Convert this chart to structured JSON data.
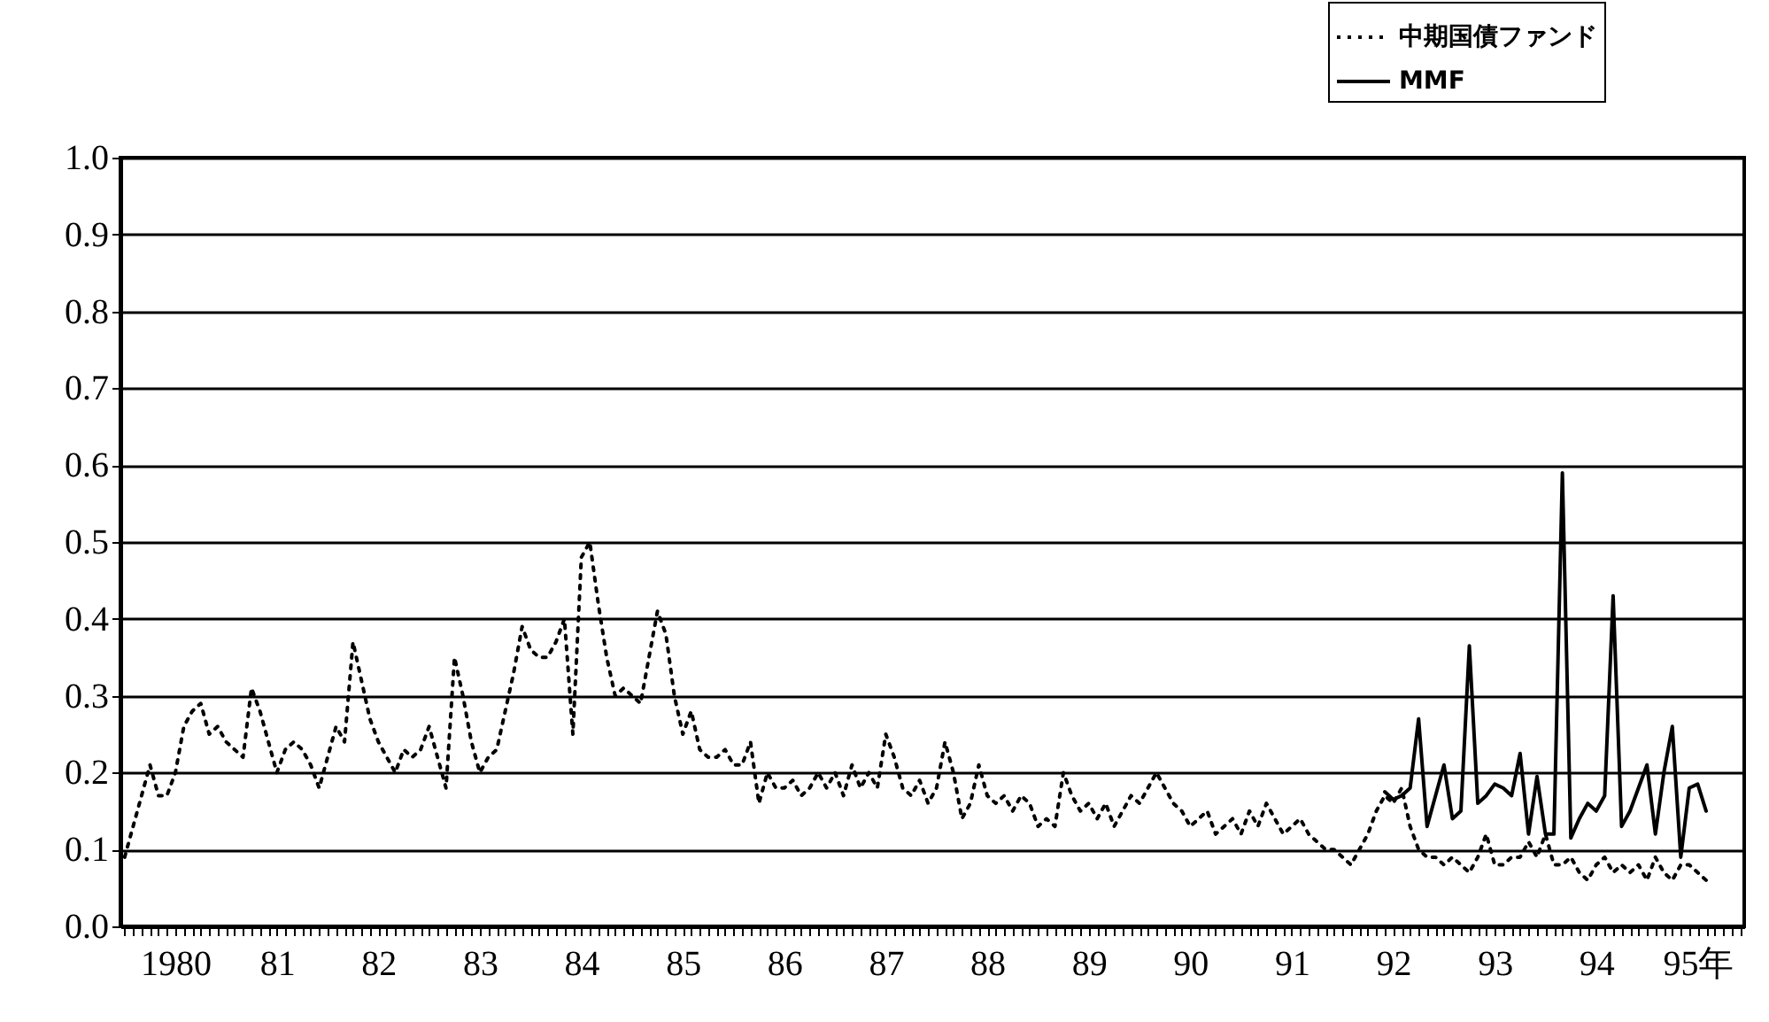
{
  "chart_data": {
    "type": "line",
    "categories": [
      null,
      null,
      null,
      null,
      null,
      null,
      "1980",
      null,
      null,
      null,
      null,
      null,
      null,
      null,
      null,
      null,
      null,
      null,
      "81",
      null,
      null,
      null,
      null,
      null,
      null,
      null,
      null,
      null,
      null,
      null,
      "82",
      null,
      null,
      null,
      null,
      null,
      null,
      null,
      null,
      null,
      null,
      null,
      "83",
      null,
      null,
      null,
      null,
      null,
      null,
      null,
      null,
      null,
      null,
      null,
      "84",
      null,
      null,
      null,
      null,
      null,
      null,
      null,
      null,
      null,
      null,
      null,
      "85",
      null,
      null,
      null,
      null,
      null,
      null,
      null,
      null,
      null,
      null,
      null,
      "86",
      null,
      null,
      null,
      null,
      null,
      null,
      null,
      null,
      null,
      null,
      null,
      "87",
      null,
      null,
      null,
      null,
      null,
      null,
      null,
      null,
      null,
      null,
      null,
      "88",
      null,
      null,
      null,
      null,
      null,
      null,
      null,
      null,
      null,
      null,
      null,
      "89",
      null,
      null,
      null,
      null,
      null,
      null,
      null,
      null,
      null,
      null,
      null,
      "90",
      null,
      null,
      null,
      null,
      null,
      null,
      null,
      null,
      null,
      null,
      null,
      "91",
      null,
      null,
      null,
      null,
      null,
      null,
      null,
      null,
      null,
      null,
      null,
      "92",
      null,
      null,
      null,
      null,
      null,
      null,
      null,
      null,
      null,
      null,
      null,
      "93",
      null,
      null,
      null,
      null,
      null,
      null,
      null,
      null,
      null,
      null,
      null,
      "94",
      null,
      null,
      null,
      null,
      null,
      null,
      null,
      null,
      null,
      null,
      null,
      "95年",
      null,
      null,
      null,
      null,
      null
    ],
    "ylim": [
      0,
      1
    ],
    "yticks": [
      {
        "value": 0,
        "label": "0.0"
      },
      0.1,
      0.2,
      0.3,
      0.4,
      0.5,
      0.6,
      0.7,
      0.8,
      0.9,
      {
        "value": 1,
        "label": "1.0"
      }
    ],
    "grid": "y",
    "legend": "top right",
    "series": [
      {
        "name": "中期国債ファンド",
        "color": "#000000",
        "line_style": "dotted",
        "values": [
          0.09,
          0.13,
          0.17,
          0.21,
          0.17,
          0.17,
          0.2,
          0.26,
          0.28,
          0.29,
          0.25,
          0.26,
          0.24,
          0.23,
          0.22,
          0.31,
          0.28,
          0.24,
          0.2,
          0.23,
          0.24,
          0.23,
          0.21,
          0.18,
          0.22,
          0.26,
          0.24,
          0.37,
          0.32,
          0.27,
          0.24,
          0.22,
          0.2,
          0.23,
          0.22,
          0.23,
          0.26,
          0.22,
          0.18,
          0.35,
          0.3,
          0.24,
          0.2,
          0.22,
          0.23,
          0.28,
          0.33,
          0.39,
          0.36,
          0.35,
          0.35,
          0.37,
          0.4,
          0.25,
          0.48,
          0.5,
          0.42,
          0.35,
          0.3,
          0.31,
          0.3,
          0.29,
          0.35,
          0.41,
          0.38,
          0.3,
          0.25,
          0.28,
          0.23,
          0.22,
          0.22,
          0.23,
          0.21,
          0.21,
          0.24,
          0.16,
          0.2,
          0.18,
          0.18,
          0.19,
          0.17,
          0.18,
          0.2,
          0.18,
          0.2,
          0.17,
          0.21,
          0.18,
          0.2,
          0.18,
          0.25,
          0.22,
          0.18,
          0.17,
          0.19,
          0.16,
          0.18,
          0.24,
          0.2,
          0.14,
          0.16,
          0.21,
          0.17,
          0.16,
          0.17,
          0.15,
          0.17,
          0.16,
          0.13,
          0.14,
          0.13,
          0.2,
          0.17,
          0.15,
          0.16,
          0.14,
          0.16,
          0.13,
          0.15,
          0.17,
          0.16,
          0.18,
          0.2,
          0.18,
          0.16,
          0.15,
          0.13,
          0.14,
          0.15,
          0.12,
          0.13,
          0.14,
          0.12,
          0.15,
          0.13,
          0.16,
          0.14,
          0.12,
          0.13,
          0.14,
          0.12,
          0.11,
          0.1,
          0.1,
          0.09,
          0.08,
          0.1,
          0.12,
          0.15,
          0.17,
          0.16,
          0.18,
          0.13,
          0.1,
          0.09,
          0.09,
          0.08,
          0.09,
          0.08,
          0.07,
          0.09,
          0.12,
          0.08,
          0.08,
          0.09,
          0.09,
          0.11,
          0.09,
          0.12,
          0.08,
          0.08,
          0.09,
          0.07,
          0.06,
          0.08,
          0.09,
          0.07,
          0.08,
          0.07,
          0.08,
          0.06,
          0.09,
          0.07,
          0.06,
          0.08,
          0.08,
          0.07,
          0.06,
          null,
          null,
          null,
          null
        ]
      },
      {
        "name": "MMF",
        "color": "#000000",
        "line_style": "solid",
        "values": [
          null,
          null,
          null,
          null,
          null,
          null,
          null,
          null,
          null,
          null,
          null,
          null,
          null,
          null,
          null,
          null,
          null,
          null,
          null,
          null,
          null,
          null,
          null,
          null,
          null,
          null,
          null,
          null,
          null,
          null,
          null,
          null,
          null,
          null,
          null,
          null,
          null,
          null,
          null,
          null,
          null,
          null,
          null,
          null,
          null,
          null,
          null,
          null,
          null,
          null,
          null,
          null,
          null,
          null,
          null,
          null,
          null,
          null,
          null,
          null,
          null,
          null,
          null,
          null,
          null,
          null,
          null,
          null,
          null,
          null,
          null,
          null,
          null,
          null,
          null,
          null,
          null,
          null,
          null,
          null,
          null,
          null,
          null,
          null,
          null,
          null,
          null,
          null,
          null,
          null,
          null,
          null,
          null,
          null,
          null,
          null,
          null,
          null,
          null,
          null,
          null,
          null,
          null,
          null,
          null,
          null,
          null,
          null,
          null,
          null,
          null,
          null,
          null,
          null,
          null,
          null,
          null,
          null,
          null,
          null,
          null,
          null,
          null,
          null,
          null,
          null,
          null,
          null,
          null,
          null,
          null,
          null,
          null,
          null,
          null,
          null,
          null,
          null,
          null,
          null,
          null,
          null,
          null,
          null,
          null,
          null,
          null,
          null,
          null,
          0.175,
          0.165,
          0.17,
          0.18,
          0.27,
          0.13,
          0.17,
          0.21,
          0.14,
          0.15,
          0.365,
          0.16,
          0.17,
          0.185,
          0.18,
          0.17,
          0.225,
          0.12,
          0.195,
          0.12,
          0.12,
          0.59,
          0.115,
          0.14,
          0.16,
          0.15,
          0.17,
          0.43,
          0.13,
          0.15,
          0.18,
          0.21,
          0.12,
          0.2,
          0.26,
          0.09,
          0.18,
          0.185,
          0.15,
          null,
          null,
          null,
          null
        ]
      }
    ]
  }
}
